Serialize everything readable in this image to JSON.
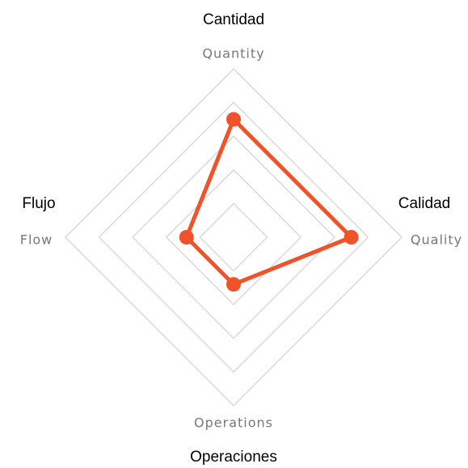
{
  "chart_data": {
    "type": "radar",
    "categories": [
      "Quantity",
      "Quality",
      "Operations",
      "Flow"
    ],
    "category_titles": [
      "Cantidad",
      "Calidad",
      "Operaciones",
      "Flujo"
    ],
    "series": [
      {
        "color": "#f0522a",
        "values": [
          3.5,
          3.5,
          1.4,
          1.4
        ]
      }
    ],
    "rlim": [
      0,
      5
    ],
    "rticks": [
      1,
      2,
      3,
      4,
      5
    ],
    "grid": true,
    "grid_color": "#d9d9d9"
  }
}
